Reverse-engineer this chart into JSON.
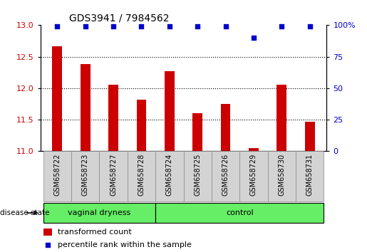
{
  "title": "GDS3941 / 7984562",
  "samples": [
    "GSM658722",
    "GSM658723",
    "GSM658727",
    "GSM658728",
    "GSM658724",
    "GSM658725",
    "GSM658726",
    "GSM658729",
    "GSM658730",
    "GSM658731"
  ],
  "bar_values": [
    12.67,
    12.38,
    12.05,
    11.82,
    12.27,
    11.6,
    11.75,
    11.05,
    12.05,
    11.47
  ],
  "percentile_values": [
    99,
    99,
    99,
    99,
    99,
    99,
    99,
    90,
    99,
    99
  ],
  "bar_color": "#cc0000",
  "dot_color": "#0000cc",
  "ylim_left": [
    11,
    13
  ],
  "ylim_right": [
    0,
    100
  ],
  "yticks_left": [
    11,
    11.5,
    12,
    12.5,
    13
  ],
  "yticks_right": [
    0,
    25,
    50,
    75,
    100
  ],
  "ytick_labels_right": [
    "0",
    "25",
    "50",
    "75",
    "100%"
  ],
  "grid_values": [
    11.5,
    12.0,
    12.5
  ],
  "group1_label": "vaginal dryness",
  "group2_label": "control",
  "group1_count": 4,
  "group2_count": 6,
  "disease_state_label": "disease state",
  "legend_bar_label": "transformed count",
  "legend_dot_label": "percentile rank within the sample",
  "group_bg_color": "#66ee66",
  "sample_bg_color": "#d3d3d3",
  "bar_bottom": 11.0,
  "bar_width": 0.35
}
